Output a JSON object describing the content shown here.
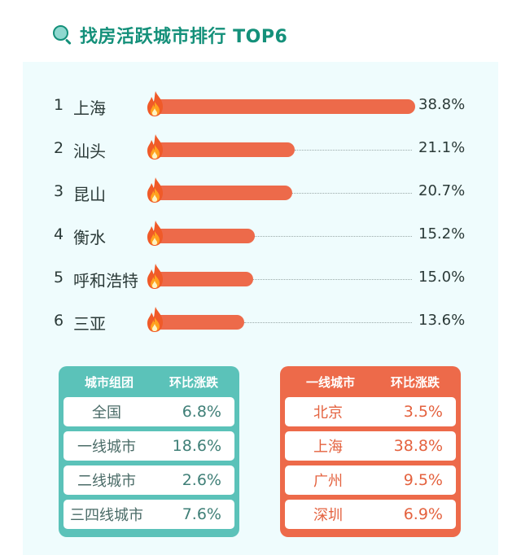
{
  "header": {
    "title": "找房活跃城市排行 TOP6",
    "icon": "search-icon"
  },
  "ranking": [
    {
      "rank": "1",
      "city": "上海",
      "value": "38.8%"
    },
    {
      "rank": "2",
      "city": "汕头",
      "value": "21.1%"
    },
    {
      "rank": "3",
      "city": "昆山",
      "value": "20.7%"
    },
    {
      "rank": "4",
      "city": "衡水",
      "value": "15.2%"
    },
    {
      "rank": "5",
      "city": "呼和浩特",
      "value": "15.0%"
    },
    {
      "rank": "6",
      "city": "三亚",
      "value": "13.6%"
    }
  ],
  "table_groups": {
    "headers": [
      "城市组团",
      "环比涨跌"
    ],
    "rows": [
      {
        "name": "全国",
        "value": "6.8%"
      },
      {
        "name": "一线城市",
        "value": "18.6%"
      },
      {
        "name": "二线城市",
        "value": "2.6%"
      },
      {
        "name": "三四线城市",
        "value": "7.6%"
      }
    ]
  },
  "table_tier1": {
    "headers": [
      "一线城市",
      "环比涨跌"
    ],
    "rows": [
      {
        "name": "北京",
        "value": "3.5%"
      },
      {
        "name": "上海",
        "value": "38.8%"
      },
      {
        "name": "广州",
        "value": "9.5%"
      },
      {
        "name": "深圳",
        "value": "6.9%"
      }
    ]
  },
  "colors": {
    "bar": "#ed6a4a",
    "title": "#14907a",
    "teal_table": "#5bc2b9",
    "orange_table": "#ed6a4a",
    "panel_bg": "#effcfd"
  },
  "chart_data": [
    {
      "type": "bar",
      "orientation": "horizontal",
      "title": "找房活跃城市排行 TOP6",
      "categories": [
        "上海",
        "汕头",
        "昆山",
        "衡水",
        "呼和浩特",
        "三亚"
      ],
      "values": [
        38.8,
        21.1,
        20.7,
        15.2,
        15.0,
        13.6
      ],
      "unit": "%",
      "xlabel": "",
      "ylabel": "",
      "grid": false,
      "legend": null
    },
    {
      "type": "table",
      "columns": [
        "城市组团",
        "环比涨跌"
      ],
      "rows": [
        [
          "全国",
          "6.8%"
        ],
        [
          "一线城市",
          "18.6%"
        ],
        [
          "二线城市",
          "2.6%"
        ],
        [
          "三四线城市",
          "7.6%"
        ]
      ]
    },
    {
      "type": "table",
      "columns": [
        "一线城市",
        "环比涨跌"
      ],
      "rows": [
        [
          "北京",
          "3.5%"
        ],
        [
          "上海",
          "38.8%"
        ],
        [
          "广州",
          "9.5%"
        ],
        [
          "深圳",
          "6.9%"
        ]
      ]
    }
  ]
}
